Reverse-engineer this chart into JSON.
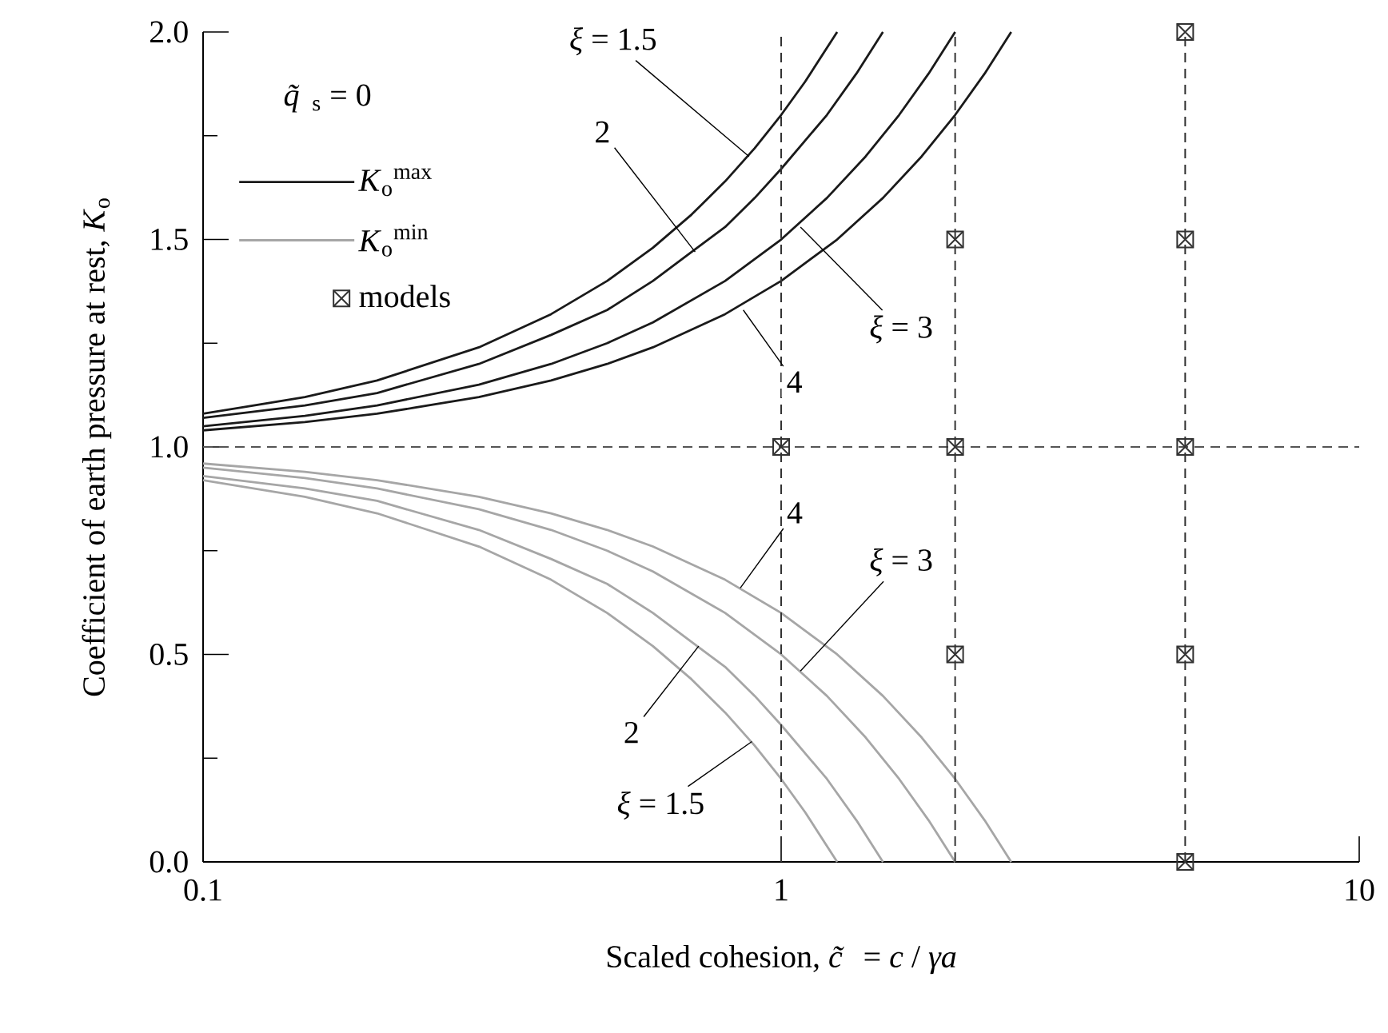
{
  "chart_data": {
    "type": "line",
    "xlabel": "Scaled cohesion,    *c̃* = *c* / *γa*",
    "ylabel": "Coefficient of earth pressure at rest, *K*$_{o}$",
    "log": "x",
    "xlim": [
      0.1,
      10
    ],
    "xticks": [
      0.1,
      1,
      10
    ],
    "ylim": [
      0,
      2
    ],
    "yticks": [
      {
        "value": 0,
        "label": "0.0"
      },
      {
        "value": 0.5,
        "label": "0.5"
      },
      {
        "value": 1,
        "label": "1.0"
      },
      {
        "value": 1.5,
        "label": "1.5"
      },
      {
        "value": 2,
        "label": "2.0"
      }
    ],
    "legend": "left",
    "series": [
      {
        "name": "*K*$_{o}$$^{max}$",
        "color": "#1a1a1a",
        "x": [
          0.1,
          0.15,
          0.2,
          0.3,
          0.4,
          0.5,
          0.6,
          0.7,
          0.8,
          0.9,
          1,
          1.1,
          1.25
        ],
        "values": [
          1.08,
          1.12,
          1.16,
          1.24,
          1.32,
          1.4,
          1.48,
          1.56,
          1.64,
          1.72,
          1.8,
          1.88,
          2.0
        ]
      },
      {
        "color": "#1a1a1a",
        "x": [
          0.1,
          0.15,
          0.2,
          0.3,
          0.4,
          0.5,
          0.6,
          0.7,
          0.8,
          0.9,
          1,
          1.2,
          1.35,
          1.5
        ],
        "values": [
          1.07,
          1.1,
          1.13,
          1.2,
          1.27,
          1.33,
          1.4,
          1.47,
          1.53,
          1.6,
          1.67,
          1.8,
          1.9,
          2.0
        ]
      },
      {
        "color": "#1a1a1a",
        "x": [
          0.1,
          0.15,
          0.2,
          0.3,
          0.4,
          0.5,
          0.6,
          0.8,
          1,
          1.2,
          1.4,
          1.6,
          1.8,
          2
        ],
        "values": [
          1.05,
          1.075,
          1.1,
          1.15,
          1.2,
          1.25,
          1.3,
          1.4,
          1.5,
          1.6,
          1.7,
          1.8,
          1.9,
          2.0
        ]
      },
      {
        "color": "#1a1a1a",
        "x": [
          0.1,
          0.15,
          0.2,
          0.3,
          0.4,
          0.5,
          0.6,
          0.8,
          1,
          1.25,
          1.5,
          1.75,
          2,
          2.25,
          2.5
        ],
        "values": [
          1.04,
          1.06,
          1.08,
          1.12,
          1.16,
          1.2,
          1.24,
          1.32,
          1.4,
          1.5,
          1.6,
          1.7,
          1.8,
          1.9,
          2.0
        ]
      },
      {
        "name": "*K*$_{o}$$^{min}$",
        "color": "#a6a6a6",
        "x": [
          0.1,
          0.15,
          0.2,
          0.3,
          0.4,
          0.5,
          0.6,
          0.7,
          0.8,
          0.9,
          1,
          1.1,
          1.25
        ],
        "values": [
          0.92,
          0.88,
          0.84,
          0.76,
          0.68,
          0.6,
          0.52,
          0.44,
          0.36,
          0.28,
          0.2,
          0.12,
          0.0
        ]
      },
      {
        "color": "#a6a6a6",
        "x": [
          0.1,
          0.15,
          0.2,
          0.3,
          0.4,
          0.5,
          0.6,
          0.7,
          0.8,
          0.9,
          1,
          1.2,
          1.35,
          1.5
        ],
        "values": [
          0.93,
          0.9,
          0.87,
          0.8,
          0.73,
          0.67,
          0.6,
          0.53,
          0.47,
          0.4,
          0.33,
          0.2,
          0.1,
          0.0
        ]
      },
      {
        "color": "#a6a6a6",
        "x": [
          0.1,
          0.15,
          0.2,
          0.3,
          0.4,
          0.5,
          0.6,
          0.8,
          1,
          1.2,
          1.4,
          1.6,
          1.8,
          2
        ],
        "values": [
          0.95,
          0.925,
          0.9,
          0.85,
          0.8,
          0.75,
          0.7,
          0.6,
          0.5,
          0.4,
          0.3,
          0.2,
          0.1,
          0.0
        ]
      },
      {
        "color": "#a6a6a6",
        "x": [
          0.1,
          0.15,
          0.2,
          0.3,
          0.4,
          0.5,
          0.6,
          0.8,
          1,
          1.25,
          1.5,
          1.75,
          2,
          2.25,
          2.5
        ],
        "values": [
          0.96,
          0.94,
          0.92,
          0.88,
          0.84,
          0.8,
          0.76,
          0.68,
          0.6,
          0.5,
          0.4,
          0.3,
          0.2,
          0.1,
          0.0
        ]
      },
      {
        "name": "models",
        "type": "scatter",
        "marker": "square",
        "color": "#333333",
        "x": [
          1,
          2,
          2,
          2,
          5,
          5,
          5,
          5,
          5
        ],
        "values": [
          1,
          1.5,
          1,
          0.5,
          2,
          1.5,
          1,
          0.5,
          0
        ]
      }
    ],
    "ref_lines": [
      {
        "axis": "y",
        "value": 1,
        "color": "#555555",
        "line_style": "dashed"
      },
      {
        "axis": "x",
        "value": 1,
        "color": "#333333",
        "line_style": "dashed"
      },
      {
        "axis": "x",
        "value": 2,
        "color": "#333333",
        "line_style": "dashed"
      },
      {
        "axis": "x",
        "value": 5,
        "color": "#333333",
        "line_style": "dashed"
      }
    ],
    "annotations": [
      "*q̃*$_{s}$  = 0",
      {
        "text": "*ξ* = 1.5",
        "x": 0.88,
        "y": 1.7
      },
      {
        "text": "2",
        "x": 0.71,
        "y": 1.47
      },
      {
        "text": "*ξ* = 3",
        "x": 1.08,
        "y": 1.53
      },
      {
        "text": "4",
        "x": 0.86,
        "y": 1.33
      },
      {
        "text": "4",
        "x": 0.85,
        "y": 0.66
      },
      {
        "text": "*ξ* = 3",
        "x": 1.08,
        "y": 0.46
      },
      {
        "text": "2",
        "x": 0.72,
        "y": 0.52
      },
      {
        "text": "*ξ* = 1.5",
        "x": 0.89,
        "y": 0.29
      }
    ]
  }
}
